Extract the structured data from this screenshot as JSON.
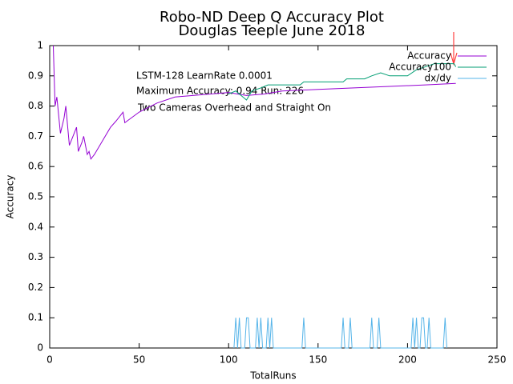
{
  "chart_data": {
    "type": "line",
    "title": "Robo-ND Deep Q Accuracy Plot",
    "subtitle": "Douglas Teeple June 2018",
    "xlabel": "TotalRuns",
    "ylabel": "Accuracy",
    "annotations": [
      "LSTM-128 LearnRate 0.0001",
      "Maximum Accuracy: 0.94 Run: 226",
      "Two Cameras Overhead and Straight On"
    ],
    "xlim": [
      0,
      250
    ],
    "ylim": [
      0,
      1
    ],
    "xticks": [
      0,
      50,
      100,
      150,
      200,
      250
    ],
    "yticks": [
      0,
      0.1,
      0.2,
      0.3,
      0.4,
      0.5,
      0.6,
      0.7,
      0.8,
      0.9,
      1
    ],
    "legend": "top-right",
    "series": [
      {
        "name": "Accuracy",
        "color": "#9400d3",
        "x": [
          2,
          3,
          4,
          6,
          8,
          9,
          11,
          13,
          15,
          16,
          18,
          19,
          21,
          22,
          23,
          25,
          28,
          31,
          34,
          37,
          41,
          42,
          50,
          60,
          70,
          80,
          90,
          100,
          110,
          120,
          130,
          150,
          170,
          190,
          210,
          227
        ],
        "values": [
          1.0,
          0.8,
          0.83,
          0.71,
          0.76,
          0.8,
          0.67,
          0.7,
          0.73,
          0.65,
          0.68,
          0.7,
          0.64,
          0.65,
          0.625,
          0.64,
          0.67,
          0.7,
          0.73,
          0.75,
          0.78,
          0.745,
          0.78,
          0.81,
          0.83,
          0.835,
          0.84,
          0.845,
          0.835,
          0.84,
          0.85,
          0.855,
          0.86,
          0.865,
          0.87,
          0.875
        ]
      },
      {
        "name": "Accuracy100",
        "color": "#009e73",
        "x": [
          100,
          104,
          108,
          110,
          113,
          118,
          122,
          140,
          142,
          164,
          166,
          176,
          180,
          185,
          190,
          200,
          205,
          210,
          215,
          226,
          227
        ],
        "values": [
          0.84,
          0.85,
          0.83,
          0.82,
          0.85,
          0.86,
          0.87,
          0.87,
          0.88,
          0.88,
          0.89,
          0.89,
          0.9,
          0.91,
          0.9,
          0.9,
          0.92,
          0.93,
          0.94,
          0.94,
          0.93
        ]
      },
      {
        "name": "dx/dy",
        "color": "#56b4e9",
        "x": [
          103,
          104,
          105,
          106,
          107,
          109,
          110,
          111,
          112,
          115,
          116,
          117,
          118,
          119,
          121,
          122,
          123,
          124,
          125,
          141,
          142,
          143,
          163,
          164,
          165,
          167,
          168,
          169,
          179,
          180,
          181,
          183,
          184,
          185,
          202,
          203,
          204,
          205,
          206,
          207,
          208,
          209,
          210,
          211,
          212,
          213,
          220,
          221,
          222
        ],
        "values": [
          0,
          0.1,
          0,
          0.1,
          0,
          0,
          0.1,
          0.1,
          0,
          0,
          0.1,
          0,
          0.1,
          0,
          0,
          0.1,
          0,
          0.1,
          0,
          0,
          0.1,
          0,
          0,
          0.1,
          0,
          0,
          0.1,
          0,
          0,
          0.1,
          0,
          0,
          0.1,
          0,
          0,
          0.1,
          0,
          0.1,
          0,
          0,
          0.1,
          0.1,
          0,
          0,
          0.1,
          0,
          0,
          0.1,
          0
        ]
      }
    ]
  }
}
